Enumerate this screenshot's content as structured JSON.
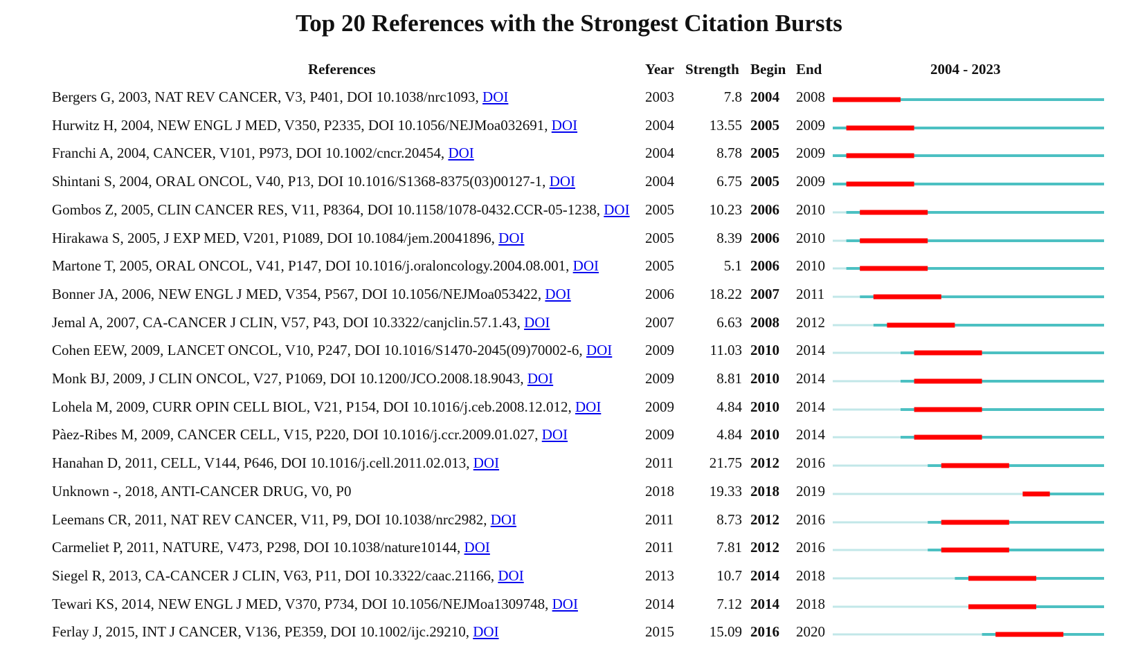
{
  "colors": {
    "burst": "#ff0000",
    "active": "#4cc0c2",
    "inactive": "#c2e7e8",
    "link": "#0000ee"
  },
  "chart_data": {
    "type": "table",
    "title": "Top 20 References with the Strongest Citation Bursts",
    "headers": {
      "references": "References",
      "year": "Year",
      "strength": "Strength",
      "begin": "Begin",
      "end": "End",
      "range": "2004 - 2023"
    },
    "range_start": 2004,
    "range_end": 2023,
    "rows": [
      {
        "ref": "Bergers G, 2003, NAT REV CANCER, V3, P401, DOI 10.1038/nrc1093, ",
        "doi": "DOI",
        "year": "2003",
        "strength": "7.8",
        "begin": "2004",
        "end": "2008"
      },
      {
        "ref": "Hurwitz H, 2004, NEW ENGL J MED, V350, P2335, DOI 10.1056/NEJMoa032691, ",
        "doi": "DOI",
        "year": "2004",
        "strength": "13.55",
        "begin": "2005",
        "end": "2009"
      },
      {
        "ref": "Franchi A, 2004, CANCER, V101, P973, DOI 10.1002/cncr.20454, ",
        "doi": "DOI",
        "year": "2004",
        "strength": "8.78",
        "begin": "2005",
        "end": "2009"
      },
      {
        "ref": "Shintani S, 2004, ORAL ONCOL, V40, P13, DOI 10.1016/S1368-8375(03)00127-1, ",
        "doi": "DOI",
        "year": "2004",
        "strength": "6.75",
        "begin": "2005",
        "end": "2009"
      },
      {
        "ref": "Gombos Z, 2005, CLIN CANCER RES, V11, P8364, DOI 10.1158/1078-0432.CCR-05-1238, ",
        "doi": "DOI",
        "year": "2005",
        "strength": "10.23",
        "begin": "2006",
        "end": "2010"
      },
      {
        "ref": "Hirakawa S, 2005, J EXP MED, V201, P1089, DOI 10.1084/jem.20041896, ",
        "doi": "DOI",
        "year": "2005",
        "strength": "8.39",
        "begin": "2006",
        "end": "2010"
      },
      {
        "ref": "Martone T, 2005, ORAL ONCOL, V41, P147, DOI 10.1016/j.oraloncology.2004.08.001, ",
        "doi": "DOI",
        "year": "2005",
        "strength": "5.1",
        "begin": "2006",
        "end": "2010"
      },
      {
        "ref": "Bonner JA, 2006, NEW ENGL J MED, V354, P567, DOI 10.1056/NEJMoa053422, ",
        "doi": "DOI",
        "year": "2006",
        "strength": "18.22",
        "begin": "2007",
        "end": "2011"
      },
      {
        "ref": "Jemal A, 2007, CA-CANCER J CLIN, V57, P43, DOI 10.3322/canjclin.57.1.43, ",
        "doi": "DOI",
        "year": "2007",
        "strength": "6.63",
        "begin": "2008",
        "end": "2012"
      },
      {
        "ref": "Cohen EEW, 2009, LANCET ONCOL, V10, P247, DOI 10.1016/S1470-2045(09)70002-6, ",
        "doi": "DOI",
        "year": "2009",
        "strength": "11.03",
        "begin": "2010",
        "end": "2014"
      },
      {
        "ref": "Monk BJ, 2009, J CLIN ONCOL, V27, P1069, DOI 10.1200/JCO.2008.18.9043, ",
        "doi": "DOI",
        "year": "2009",
        "strength": "8.81",
        "begin": "2010",
        "end": "2014"
      },
      {
        "ref": "Lohela M, 2009, CURR OPIN CELL BIOL, V21, P154, DOI 10.1016/j.ceb.2008.12.012, ",
        "doi": "DOI",
        "year": "2009",
        "strength": "4.84",
        "begin": "2010",
        "end": "2014"
      },
      {
        "ref": "Pàez-Ribes M, 2009, CANCER CELL, V15, P220, DOI 10.1016/j.ccr.2009.01.027, ",
        "doi": "DOI",
        "year": "2009",
        "strength": "4.84",
        "begin": "2010",
        "end": "2014"
      },
      {
        "ref": "Hanahan D, 2011, CELL, V144, P646, DOI 10.1016/j.cell.2011.02.013, ",
        "doi": "DOI",
        "year": "2011",
        "strength": "21.75",
        "begin": "2012",
        "end": "2016"
      },
      {
        "ref": "Unknown -, 2018, ANTI-CANCER DRUG, V0, P0",
        "doi": "",
        "year": "2018",
        "strength": "19.33",
        "begin": "2018",
        "end": "2019"
      },
      {
        "ref": "Leemans CR, 2011, NAT REV CANCER, V11, P9, DOI 10.1038/nrc2982, ",
        "doi": "DOI",
        "year": "2011",
        "strength": "8.73",
        "begin": "2012",
        "end": "2016"
      },
      {
        "ref": "Carmeliet P, 2011, NATURE, V473, P298, DOI 10.1038/nature10144, ",
        "doi": "DOI",
        "year": "2011",
        "strength": "7.81",
        "begin": "2012",
        "end": "2016"
      },
      {
        "ref": "Siegel R, 2013, CA-CANCER J CLIN, V63, P11, DOI 10.3322/caac.21166, ",
        "doi": "DOI",
        "year": "2013",
        "strength": "10.7",
        "begin": "2014",
        "end": "2018"
      },
      {
        "ref": "Tewari KS, 2014, NEW ENGL J MED, V370, P734, DOI 10.1056/NEJMoa1309748, ",
        "doi": "DOI",
        "year": "2014",
        "strength": "7.12",
        "begin": "2014",
        "end": "2018"
      },
      {
        "ref": "Ferlay J, 2015, INT J CANCER, V136, PE359, DOI 10.1002/ijc.29210, ",
        "doi": "DOI",
        "year": "2015",
        "strength": "15.09",
        "begin": "2016",
        "end": "2020"
      }
    ]
  }
}
